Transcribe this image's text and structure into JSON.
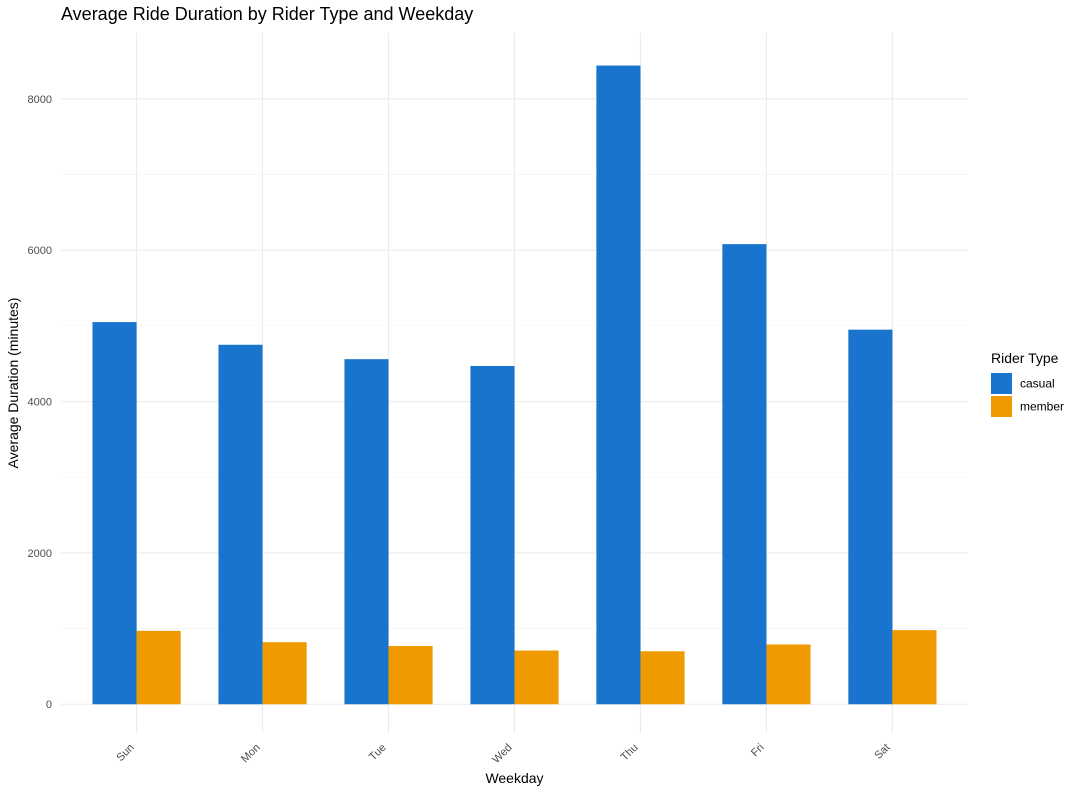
{
  "chart_data": {
    "type": "bar",
    "title": "Average Ride Duration by Rider Type and Weekday",
    "xlabel": "Weekday",
    "ylabel": "Average Duration (minutes)",
    "categories": [
      "Sun",
      "Mon",
      "Tue",
      "Wed",
      "Thu",
      "Fri",
      "Sat"
    ],
    "series": [
      {
        "name": "casual",
        "color": "#1874CD",
        "values": [
          5050,
          4750,
          4560,
          4470,
          8440,
          6080,
          4950
        ]
      },
      {
        "name": "member",
        "color": "#EE9A00",
        "values": [
          970,
          820,
          770,
          710,
          700,
          790,
          980
        ]
      }
    ],
    "ylim": [
      -380,
      8870
    ],
    "yticks": [
      0,
      2000,
      4000,
      6000,
      8000
    ],
    "ytick_labels": [
      "0",
      "2000",
      "4000",
      "6000",
      "8000"
    ],
    "grid": true,
    "legend": {
      "title": "Rider Type",
      "placement": "right"
    }
  }
}
